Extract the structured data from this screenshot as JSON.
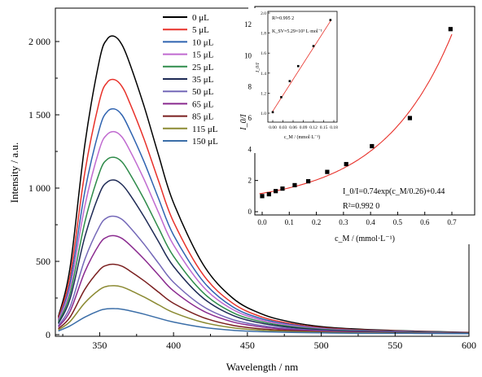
{
  "chart_data": [
    {
      "type": "line",
      "xlabel": "Wavelength / nm",
      "ylabel": "Intensity / a.u.",
      "xlim": [
        320,
        600
      ],
      "ylim": [
        -50,
        2200
      ],
      "x_ticks": [
        350,
        400,
        450,
        500,
        550,
        600
      ],
      "x_tick_labels": [
        "350",
        "400",
        "450",
        "500",
        "550",
        "600"
      ],
      "y_ticks": [
        0,
        500,
        1000,
        1500,
        2000
      ],
      "y_tick_labels": [
        "0",
        "500",
        "1 000",
        "1 500",
        "2 000"
      ],
      "grid": false,
      "legend_position": "top-left",
      "x": [
        322,
        330,
        340,
        350,
        355,
        360,
        365,
        370,
        380,
        390,
        400,
        420,
        440,
        460,
        480,
        500,
        520,
        550,
        580,
        600
      ],
      "series": [
        {
          "name": "0 μL",
          "color": "#000000",
          "values": [
            120,
            460,
            1300,
            1880,
            2015,
            2035,
            1980,
            1860,
            1560,
            1220,
            900,
            480,
            250,
            140,
            85,
            55,
            40,
            28,
            20,
            15
          ]
        },
        {
          "name": "5 μL",
          "color": "#e8312a",
          "values": [
            110,
            400,
            1110,
            1600,
            1720,
            1740,
            1695,
            1590,
            1335,
            1045,
            770,
            410,
            215,
            120,
            75,
            48,
            35,
            25,
            18,
            14
          ]
        },
        {
          "name": "10 μL",
          "color": "#2f63b0",
          "values": [
            100,
            355,
            980,
            1410,
            1520,
            1540,
            1500,
            1405,
            1180,
            925,
            680,
            365,
            190,
            108,
            68,
            44,
            32,
            23,
            17,
            13
          ]
        },
        {
          "name": "15 μL",
          "color": "#c06ad0",
          "values": [
            95,
            320,
            880,
            1270,
            1365,
            1385,
            1350,
            1265,
            1060,
            830,
            612,
            328,
            172,
            98,
            62,
            40,
            30,
            21,
            16,
            12
          ]
        },
        {
          "name": "25 μL",
          "color": "#2e8b4a",
          "values": [
            85,
            280,
            770,
            1110,
            1195,
            1210,
            1180,
            1105,
            925,
            725,
            535,
            287,
            151,
            87,
            55,
            36,
            27,
            19,
            15,
            11
          ]
        },
        {
          "name": "35 μL",
          "color": "#1e2a55",
          "values": [
            75,
            245,
            670,
            965,
            1040,
            1055,
            1025,
            962,
            805,
            632,
            466,
            250,
            132,
            77,
            49,
            33,
            25,
            18,
            14,
            11
          ]
        },
        {
          "name": "50 μL",
          "color": "#7468b8",
          "values": [
            60,
            190,
            515,
            740,
            798,
            808,
            787,
            738,
            618,
            485,
            358,
            193,
            103,
            61,
            40,
            27,
            21,
            15,
            12,
            10
          ]
        },
        {
          "name": "65 μL",
          "color": "#8a2a8f",
          "values": [
            52,
            160,
            430,
            620,
            666,
            675,
            657,
            616,
            516,
            405,
            299,
            162,
            87,
            52,
            34,
            24,
            18,
            14,
            11,
            9
          ]
        },
        {
          "name": "85 μL",
          "color": "#7a1f1f",
          "values": [
            40,
            120,
            310,
            442,
            474,
            480,
            468,
            438,
            368,
            289,
            214,
            117,
            64,
            39,
            27,
            19,
            15,
            12,
            10,
            9
          ]
        },
        {
          "name": "115 μL",
          "color": "#8b8a32",
          "values": [
            32,
            90,
            218,
            308,
            330,
            334,
            326,
            306,
            257,
            203,
            151,
            84,
            47,
            30,
            21,
            16,
            13,
            11,
            9,
            8
          ]
        },
        {
          "name": "150 μL",
          "color": "#3b6ea8",
          "values": [
            25,
            60,
            120,
            165,
            176,
            178,
            174,
            164,
            140,
            112,
            86,
            50,
            30,
            20,
            15,
            12,
            10,
            9,
            8,
            7
          ]
        }
      ]
    },
    {
      "type": "scatter",
      "xlabel": "c_M / (mmol·L⁻¹)",
      "ylabel": "I_0/I",
      "xlim": [
        -0.02,
        0.72
      ],
      "ylim": [
        0.5,
        13
      ],
      "x_ticks": [
        0.0,
        0.1,
        0.2,
        0.3,
        0.4,
        0.5,
        0.6,
        0.7
      ],
      "x_tick_labels": [
        "0.0",
        "0.1",
        "0.2",
        "0.3",
        "0.4",
        "0.5",
        "0.6",
        "0.7"
      ],
      "y_ticks": [
        0,
        2,
        4,
        6,
        8,
        10,
        12
      ],
      "y_tick_labels": [
        "0",
        "2",
        "4",
        "6",
        "8",
        "10",
        "12"
      ],
      "x": [
        0.0,
        0.025,
        0.05,
        0.075,
        0.12,
        0.17,
        0.24,
        0.31,
        0.405,
        0.545,
        0.695
      ],
      "y": [
        1.0,
        1.12,
        1.32,
        1.48,
        1.7,
        1.95,
        2.55,
        3.05,
        4.2,
        6.0,
        11.7
      ],
      "fit": {
        "a": 0.74,
        "b": 0.26,
        "c": 0.44,
        "color": "#e8312a"
      },
      "annotations": [
        {
          "label": "I_0/I=0.74exp(c_M/0.26)+0.44"
        },
        {
          "label": "R²=0.992 0"
        }
      ]
    },
    {
      "type": "scatter",
      "xlabel": "c_M / (mmol·L⁻¹)",
      "ylabel": "I_0/I",
      "xlim": [
        -0.01,
        0.18
      ],
      "ylim": [
        0.9,
        2.0
      ],
      "x_ticks": [
        0.0,
        0.03,
        0.06,
        0.09,
        0.12,
        0.15,
        0.18
      ],
      "x_tick_labels": [
        "0.00",
        "0.03",
        "0.06",
        "0.09",
        "0.12",
        "0.15",
        "0.18"
      ],
      "y_ticks": [
        1.0,
        1.2,
        1.4,
        1.6,
        1.8,
        2.0
      ],
      "y_tick_labels": [
        "1.0",
        "1.2",
        "1.4",
        "1.6",
        "1.8",
        "2.0"
      ],
      "x": [
        0.0,
        0.025,
        0.05,
        0.075,
        0.12,
        0.17
      ],
      "y": [
        1.01,
        1.16,
        1.32,
        1.47,
        1.67,
        1.93
      ],
      "fit": {
        "slope": 5.29,
        "intercept": 1.02,
        "color": "#e8312a"
      },
      "annotations": [
        {
          "label": "R²=0.995 2"
        },
        {
          "label": "K_SV=5.29×10³ L·mol⁻¹"
        }
      ]
    }
  ]
}
